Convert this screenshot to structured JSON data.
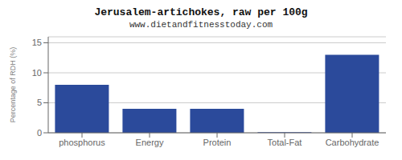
{
  "chart_data": {
    "type": "bar",
    "title": "Jerusalem-artichokes, raw per 100g",
    "subtitle": "www.dietandfitnesstoday.com",
    "categories": [
      "phosphorus",
      "Energy",
      "Protein",
      "Total-Fat",
      "Carbohydrate"
    ],
    "values": [
      8.0,
      4.0,
      4.0,
      0.1,
      13.0
    ],
    "color": "#2b4a9b",
    "ylabel": "Percentage of RDH (%)",
    "ylim": [
      0,
      16
    ],
    "yticks": [
      0,
      5,
      10,
      15
    ],
    "grid": true
  }
}
